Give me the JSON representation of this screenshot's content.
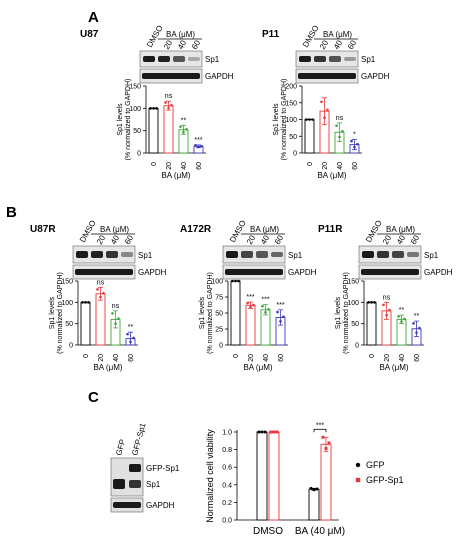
{
  "panels": {
    "A": "A",
    "B": "B",
    "C": "C"
  },
  "blot_labels": {
    "dmso": "DMSO",
    "ba_um": "BA (μM)",
    "dose_20": "20",
    "dose_40": "40",
    "dose_60": "60",
    "sp1": "Sp1",
    "gapdh": "GAPDH",
    "gfp": "GFP",
    "gfp_sp1_lane": "GFP-Sp1",
    "gfp_sp1_band": "GFP-Sp1"
  },
  "chart_data": [
    {
      "panel": "A",
      "type": "bar",
      "title": "U87",
      "categories": [
        "0",
        "20",
        "40",
        "60"
      ],
      "values": [
        100,
        106,
        52,
        15
      ],
      "errors": [
        0,
        10,
        10,
        3
      ],
      "significance": [
        "",
        "ns",
        "**",
        "***"
      ],
      "bar_colors": [
        "#000000",
        "#e8383d",
        "#3aaa35",
        "#3a3ab8"
      ],
      "ylabel": "Sp1 levels (% normalized to GAPDH)",
      "xlabel": "BA (μM)",
      "ylim": [
        0,
        150
      ],
      "yticks": [
        0,
        50,
        100,
        150
      ]
    },
    {
      "panel": "A",
      "type": "bar",
      "title": "P11",
      "categories": [
        "0",
        "20",
        "40",
        "60"
      ],
      "values": [
        100,
        125,
        62,
        25
      ],
      "errors": [
        0,
        40,
        28,
        15
      ],
      "significance": [
        "",
        "",
        "ns",
        "*"
      ],
      "bar_colors": [
        "#000000",
        "#e8383d",
        "#3aaa35",
        "#3a3ab8"
      ],
      "ylabel": "Sp1 levels (% normalized to GAPDH)",
      "xlabel": "BA (μM)",
      "ylim": [
        0,
        200
      ],
      "yticks": [
        0,
        50,
        100,
        150,
        200
      ]
    },
    {
      "panel": "B",
      "type": "bar",
      "title": "U87R",
      "categories": [
        "0",
        "20",
        "40",
        "60"
      ],
      "values": [
        100,
        120,
        60,
        15
      ],
      "errors": [
        0,
        15,
        20,
        15
      ],
      "significance": [
        "",
        "ns",
        "ns",
        "**"
      ],
      "bar_colors": [
        "#000000",
        "#e8383d",
        "#3aaa35",
        "#3a3ab8"
      ],
      "ylabel": "Sp1 levels (% normalized to GAPDH)",
      "xlabel": "BA (μM)",
      "ylim": [
        0,
        150
      ],
      "yticks": [
        0,
        50,
        100,
        150
      ]
    },
    {
      "panel": "B",
      "type": "bar",
      "title": "A172R",
      "categories": [
        "0",
        "20",
        "40",
        "60"
      ],
      "values": [
        100,
        62,
        55,
        43
      ],
      "errors": [
        0,
        5,
        8,
        12
      ],
      "significance": [
        "",
        "***",
        "***",
        "***"
      ],
      "bar_colors": [
        "#000000",
        "#e8383d",
        "#3aaa35",
        "#3a3ab8"
      ],
      "ylabel": "Sp1 levels (% normalized to GAPDH)",
      "xlabel": "BA (μM)",
      "ylim": [
        0,
        100
      ],
      "yticks": [
        0,
        25,
        50,
        75,
        100
      ]
    },
    {
      "panel": "B",
      "type": "bar",
      "title": "P11R",
      "categories": [
        "0",
        "20",
        "40",
        "60"
      ],
      "values": [
        100,
        80,
        60,
        38
      ],
      "errors": [
        0,
        20,
        10,
        18
      ],
      "significance": [
        "",
        "ns",
        "**",
        "**"
      ],
      "bar_colors": [
        "#000000",
        "#e8383d",
        "#3aaa35",
        "#3a3ab8"
      ],
      "ylabel": "Sp1 levels (% normalized to GAPDH)",
      "xlabel": "BA (μM)",
      "ylim": [
        0,
        150
      ],
      "yticks": [
        0,
        50,
        100,
        150
      ]
    },
    {
      "panel": "C",
      "type": "bar",
      "categories": [
        "DMSO",
        "BA (40 μM)"
      ],
      "series": [
        {
          "name": "GFP",
          "color": "#000000",
          "values": [
            1.0,
            0.35
          ],
          "errors": [
            0,
            0.01
          ]
        },
        {
          "name": "GFP-Sp1",
          "color": "#e8383d",
          "values": [
            1.0,
            0.86
          ],
          "errors": [
            0,
            0.08
          ]
        }
      ],
      "significance": "***",
      "ylabel": "Normalized cell viability",
      "ylim": [
        0,
        1.0
      ],
      "yticks": [
        0.0,
        0.2,
        0.4,
        0.6,
        0.8,
        1.0
      ],
      "legend": "right"
    }
  ]
}
